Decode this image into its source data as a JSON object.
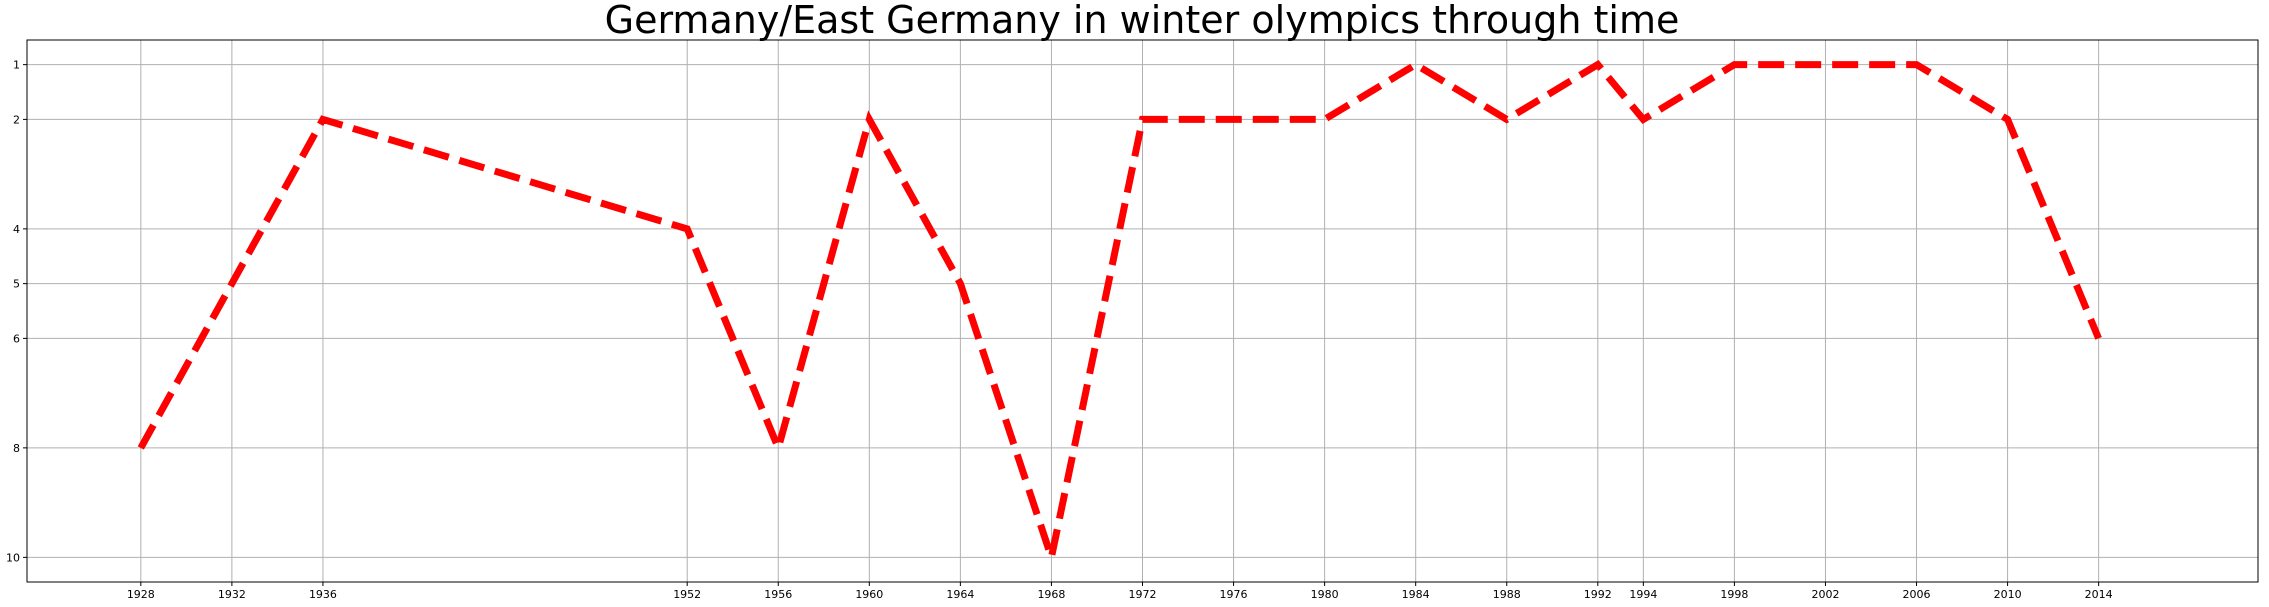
{
  "chart_data": {
    "type": "line",
    "title": "Germany/East Germany in winter olympics through time",
    "xlabel": "",
    "ylabel": "",
    "grid": true,
    "y_inverted": true,
    "xlim": [
      1923,
      2021
    ],
    "ylim": [
      10.45,
      0.55
    ],
    "x_ticks": [
      1928,
      1932,
      1936,
      1952,
      1956,
      1960,
      1964,
      1968,
      1972,
      1976,
      1980,
      1984,
      1988,
      1992,
      1994,
      1998,
      2002,
      2006,
      2010,
      2014
    ],
    "y_ticks": [
      1,
      2,
      4,
      5,
      6,
      8,
      10
    ],
    "series": [
      {
        "color": "#ff0000",
        "line_style": "dashed",
        "x": [
          1928,
          1936,
          1952,
          1956,
          1960,
          1964,
          1968,
          1972,
          1976,
          1980,
          1984,
          1988,
          1992,
          1994,
          1998,
          2002,
          2006,
          2010,
          2014
        ],
        "y": [
          8,
          2,
          4,
          8,
          2,
          5,
          10,
          2,
          2,
          2,
          1,
          2,
          1,
          2,
          1,
          1,
          1,
          2,
          6
        ]
      }
    ]
  }
}
